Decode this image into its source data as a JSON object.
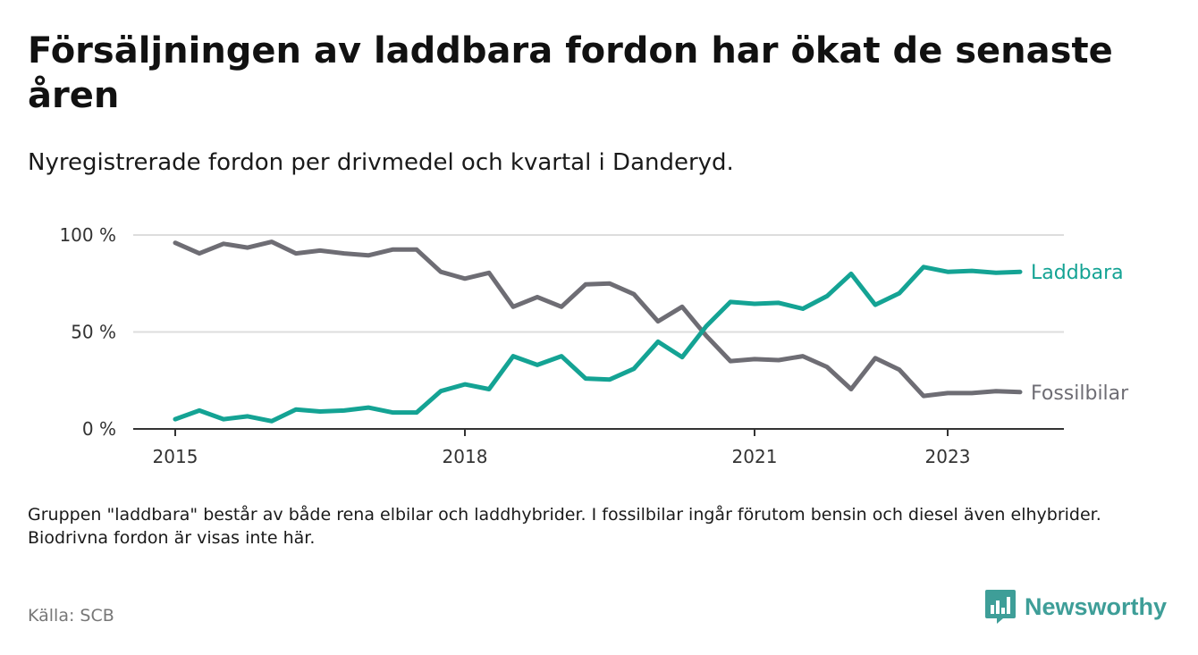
{
  "title": "Försäljningen av laddbara fordon har ökat de senaste åren",
  "subtitle": "Nyregistrerade fordon per drivmedel och kvartal i Danderyd.",
  "note": "Gruppen \"laddbara\" består av både rena elbilar och laddhybrider. I fossilbilar ingår förutom bensin och diesel även elhybrider. Biodrivna fordon är visas inte här.",
  "source": "Källa: SCB",
  "brand": {
    "name": "Newsworthy",
    "icon": "bar-chart-icon"
  },
  "colors": {
    "laddbara": "#14a394",
    "fossil": "#6e6d74",
    "grid": "#dddddd",
    "axis": "#333333"
  },
  "chart_data": {
    "type": "line",
    "title": "Försäljningen av laddbara fordon har ökat de senaste åren",
    "xlabel": "",
    "ylabel": "",
    "xlim": [
      2015.0,
      2023.75
    ],
    "ylim": [
      0,
      100
    ],
    "grid": true,
    "legend": "inline-right",
    "y_ticks": [
      {
        "value": 0,
        "label": "0 %"
      },
      {
        "value": 50,
        "label": "50 %"
      },
      {
        "value": 100,
        "label": "100 %"
      }
    ],
    "x_ticks": [
      {
        "value": 2015,
        "label": "2015"
      },
      {
        "value": 2018,
        "label": "2018"
      },
      {
        "value": 2021,
        "label": "2021"
      },
      {
        "value": 2023,
        "label": "2023"
      }
    ],
    "x": [
      2015.0,
      2015.25,
      2015.5,
      2015.75,
      2016.0,
      2016.25,
      2016.5,
      2016.75,
      2017.0,
      2017.25,
      2017.5,
      2017.75,
      2018.0,
      2018.25,
      2018.5,
      2018.75,
      2019.0,
      2019.25,
      2019.5,
      2019.75,
      2020.0,
      2020.25,
      2020.5,
      2020.75,
      2021.0,
      2021.25,
      2021.5,
      2021.75,
      2022.0,
      2022.25,
      2022.5,
      2022.75,
      2023.0,
      2023.25,
      2023.5,
      2023.75
    ],
    "series": [
      {
        "name": "Laddbara",
        "color": "#14a394",
        "values": [
          5,
          9.5,
          5,
          6.5,
          4,
          10,
          9,
          9.5,
          11,
          8.5,
          8.5,
          19.5,
          23,
          20.5,
          37.5,
          33,
          37.5,
          26,
          25.5,
          31,
          45,
          37,
          53,
          65.5,
          64.5,
          65,
          62,
          68.5,
          80,
          64,
          70,
          83.5,
          81,
          81.5,
          80.5,
          81
        ]
      },
      {
        "name": "Fossilbilar",
        "color": "#6e6d74",
        "values": [
          96,
          90.5,
          95.5,
          93.5,
          96.5,
          90.5,
          92,
          90.5,
          89.5,
          92.5,
          92.5,
          81,
          77.5,
          80.5,
          63,
          68,
          63,
          74.5,
          75,
          69.5,
          55.5,
          63,
          48,
          35,
          36,
          35.5,
          37.5,
          32,
          20.5,
          36.5,
          30.5,
          17,
          18.5,
          18.5,
          19.5,
          19
        ]
      }
    ]
  }
}
